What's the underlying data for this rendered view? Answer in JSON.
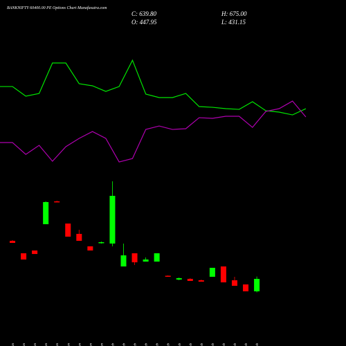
{
  "chart_data": [
    {
      "type": "line",
      "title": "BANKNIFTY 60400.00 PE Options Chart Munafasutra.com",
      "ohlc_labels": [
        "C: 639.80",
        "O: 447.95",
        "H: 675.00",
        "L: 431.15"
      ],
      "ylim": [
        0,
        5000
      ],
      "series": [
        {
          "color": "#00e600",
          "values": [
            3603,
            3454,
            3496,
            3966,
            3966,
            3646,
            3614,
            3528,
            3603,
            4008,
            3486,
            3433,
            3433,
            3496,
            3294,
            3283,
            3262,
            3251,
            3369,
            3230,
            3209,
            3166,
            3262
          ]
        },
        {
          "color": "#b000b0",
          "values": [
            2740,
            2558,
            2697,
            2452,
            2676,
            2804,
            2910,
            2804,
            2441,
            2494,
            2942,
            2995,
            2942,
            2953,
            3123,
            3113,
            3145,
            3145,
            2974,
            3219,
            3262,
            3379,
            3134
          ]
        }
      ]
    },
    {
      "type": "candlestick",
      "ylim": [
        0,
        5000
      ],
      "up_color": "#00ff00",
      "down_color": "#ff0000",
      "categories": [
        "15 Jan",
        "16 Jan",
        "20 Jan",
        "21 Jan",
        "23 Jan",
        "27 Jan",
        "28 Jan",
        "29 Jan",
        "30 Jan",
        "01 Feb",
        "03 Feb",
        "04 Feb",
        "05 Feb",
        "06 Feb",
        "07 Feb",
        "10 Feb",
        "11 Feb",
        "12 Feb",
        "13 Feb",
        "14 Feb",
        "17 Feb",
        "18 Feb",
        "19 Feb"
      ],
      "open": [
        1226,
        1034,
        1077,
        1482,
        1834,
        1492,
        1333,
        1141,
        1194,
        1184,
        831,
        1034,
        906,
        906,
        688,
        629,
        640,
        618,
        672,
        831,
        618,
        554,
        447.95
      ],
      "high": [
        1237,
        1034,
        1077,
        1834,
        1845,
        1492,
        1396,
        1141,
        1215,
        2143,
        1184,
        1034,
        970,
        1034,
        693,
        661,
        650,
        629,
        810,
        831,
        672,
        554,
        675
      ],
      "low": [
        1194,
        938,
        1023,
        1482,
        1823,
        1290,
        1226,
        1077,
        1184,
        1141,
        831,
        853,
        906,
        906,
        672,
        618,
        608,
        597,
        672,
        586,
        533,
        448,
        431.15
      ],
      "close": [
        1194,
        938,
        1023,
        1823,
        1823,
        1290,
        1226,
        1077,
        1205,
        1919,
        1002,
        895,
        938,
        1034,
        682,
        650,
        608,
        597,
        810,
        586,
        533,
        448,
        639.8
      ]
    }
  ]
}
